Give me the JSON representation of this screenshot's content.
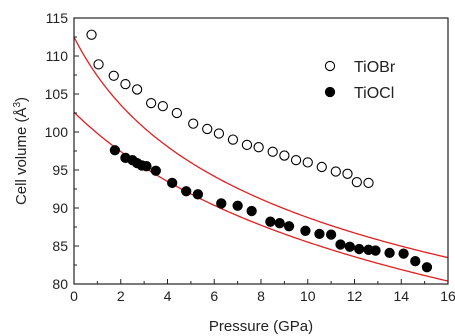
{
  "chart_data": {
    "type": "scatter",
    "xlabel": "Pressure (GPa)",
    "ylabel_main": "Cell volume (",
    "ylabel_unit": "Å",
    "ylabel_sup": "3",
    "ylabel_end": ")",
    "xlim": [
      0,
      16
    ],
    "ylim": [
      80,
      115
    ],
    "xticks": [
      "0",
      "2",
      "4",
      "6",
      "8",
      "10",
      "12",
      "14",
      "16"
    ],
    "yticks": [
      "80",
      "85",
      "90",
      "95",
      "100",
      "105",
      "110",
      "115"
    ],
    "legend_position": "top-right",
    "fit_color": "#e02020",
    "series": [
      {
        "name": "TiOBr",
        "marker": "open-circle",
        "points": [
          [
            0.75,
            112.8
          ],
          [
            1.05,
            108.9
          ],
          [
            1.7,
            107.4
          ],
          [
            2.2,
            106.3
          ],
          [
            2.7,
            105.6
          ],
          [
            3.3,
            103.8
          ],
          [
            3.8,
            103.4
          ],
          [
            4.4,
            102.5
          ],
          [
            5.1,
            101.1
          ],
          [
            5.7,
            100.4
          ],
          [
            6.2,
            99.8
          ],
          [
            6.8,
            99.0
          ],
          [
            7.4,
            98.3
          ],
          [
            7.9,
            98.0
          ],
          [
            8.5,
            97.4
          ],
          [
            9.0,
            96.9
          ],
          [
            9.5,
            96.3
          ],
          [
            10.0,
            96.0
          ],
          [
            10.6,
            95.4
          ],
          [
            11.2,
            94.8
          ],
          [
            11.7,
            94.5
          ],
          [
            12.1,
            93.4
          ],
          [
            12.6,
            93.3
          ]
        ],
        "fit": {
          "V0": 112.5,
          "B0": 18.5,
          "Bp": 6.2
        }
      },
      {
        "name": "TiOCl",
        "marker": "filled-circle",
        "points": [
          [
            1.75,
            97.6
          ],
          [
            2.2,
            96.6
          ],
          [
            2.5,
            96.3
          ],
          [
            2.7,
            95.9
          ],
          [
            2.9,
            95.6
          ],
          [
            3.1,
            95.5
          ],
          [
            3.5,
            94.9
          ],
          [
            4.2,
            93.3
          ],
          [
            4.8,
            92.2
          ],
          [
            5.3,
            91.8
          ],
          [
            6.3,
            90.6
          ],
          [
            7.0,
            90.3
          ],
          [
            7.6,
            89.6
          ],
          [
            8.4,
            88.2
          ],
          [
            8.8,
            88.0
          ],
          [
            9.2,
            87.6
          ],
          [
            9.9,
            87.0
          ],
          [
            10.5,
            86.6
          ],
          [
            11.0,
            86.5
          ],
          [
            11.4,
            85.2
          ],
          [
            11.8,
            84.9
          ],
          [
            12.2,
            84.6
          ],
          [
            12.6,
            84.5
          ],
          [
            12.9,
            84.4
          ],
          [
            13.5,
            84.1
          ],
          [
            14.1,
            84.0
          ],
          [
            14.6,
            83.0
          ],
          [
            15.1,
            82.2
          ]
        ],
        "fit": {
          "V0": 102.6,
          "B0": 34.0,
          "Bp": 4.9
        }
      }
    ]
  }
}
